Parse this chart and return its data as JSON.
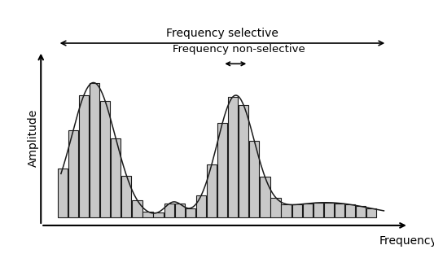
{
  "xlabel": "Frequency",
  "ylabel": "Amplitude",
  "bar_color": "#c8c8c8",
  "bar_edge_color": "#1a1a1a",
  "curve_color": "#1a1a1a",
  "background_color": "#ffffff",
  "label_fs_text": "Frequency selective",
  "label_fns_text": "Frequency non-selective",
  "n_bars": 30,
  "figsize": [
    5.33,
    3.12
  ],
  "dpi": 100
}
